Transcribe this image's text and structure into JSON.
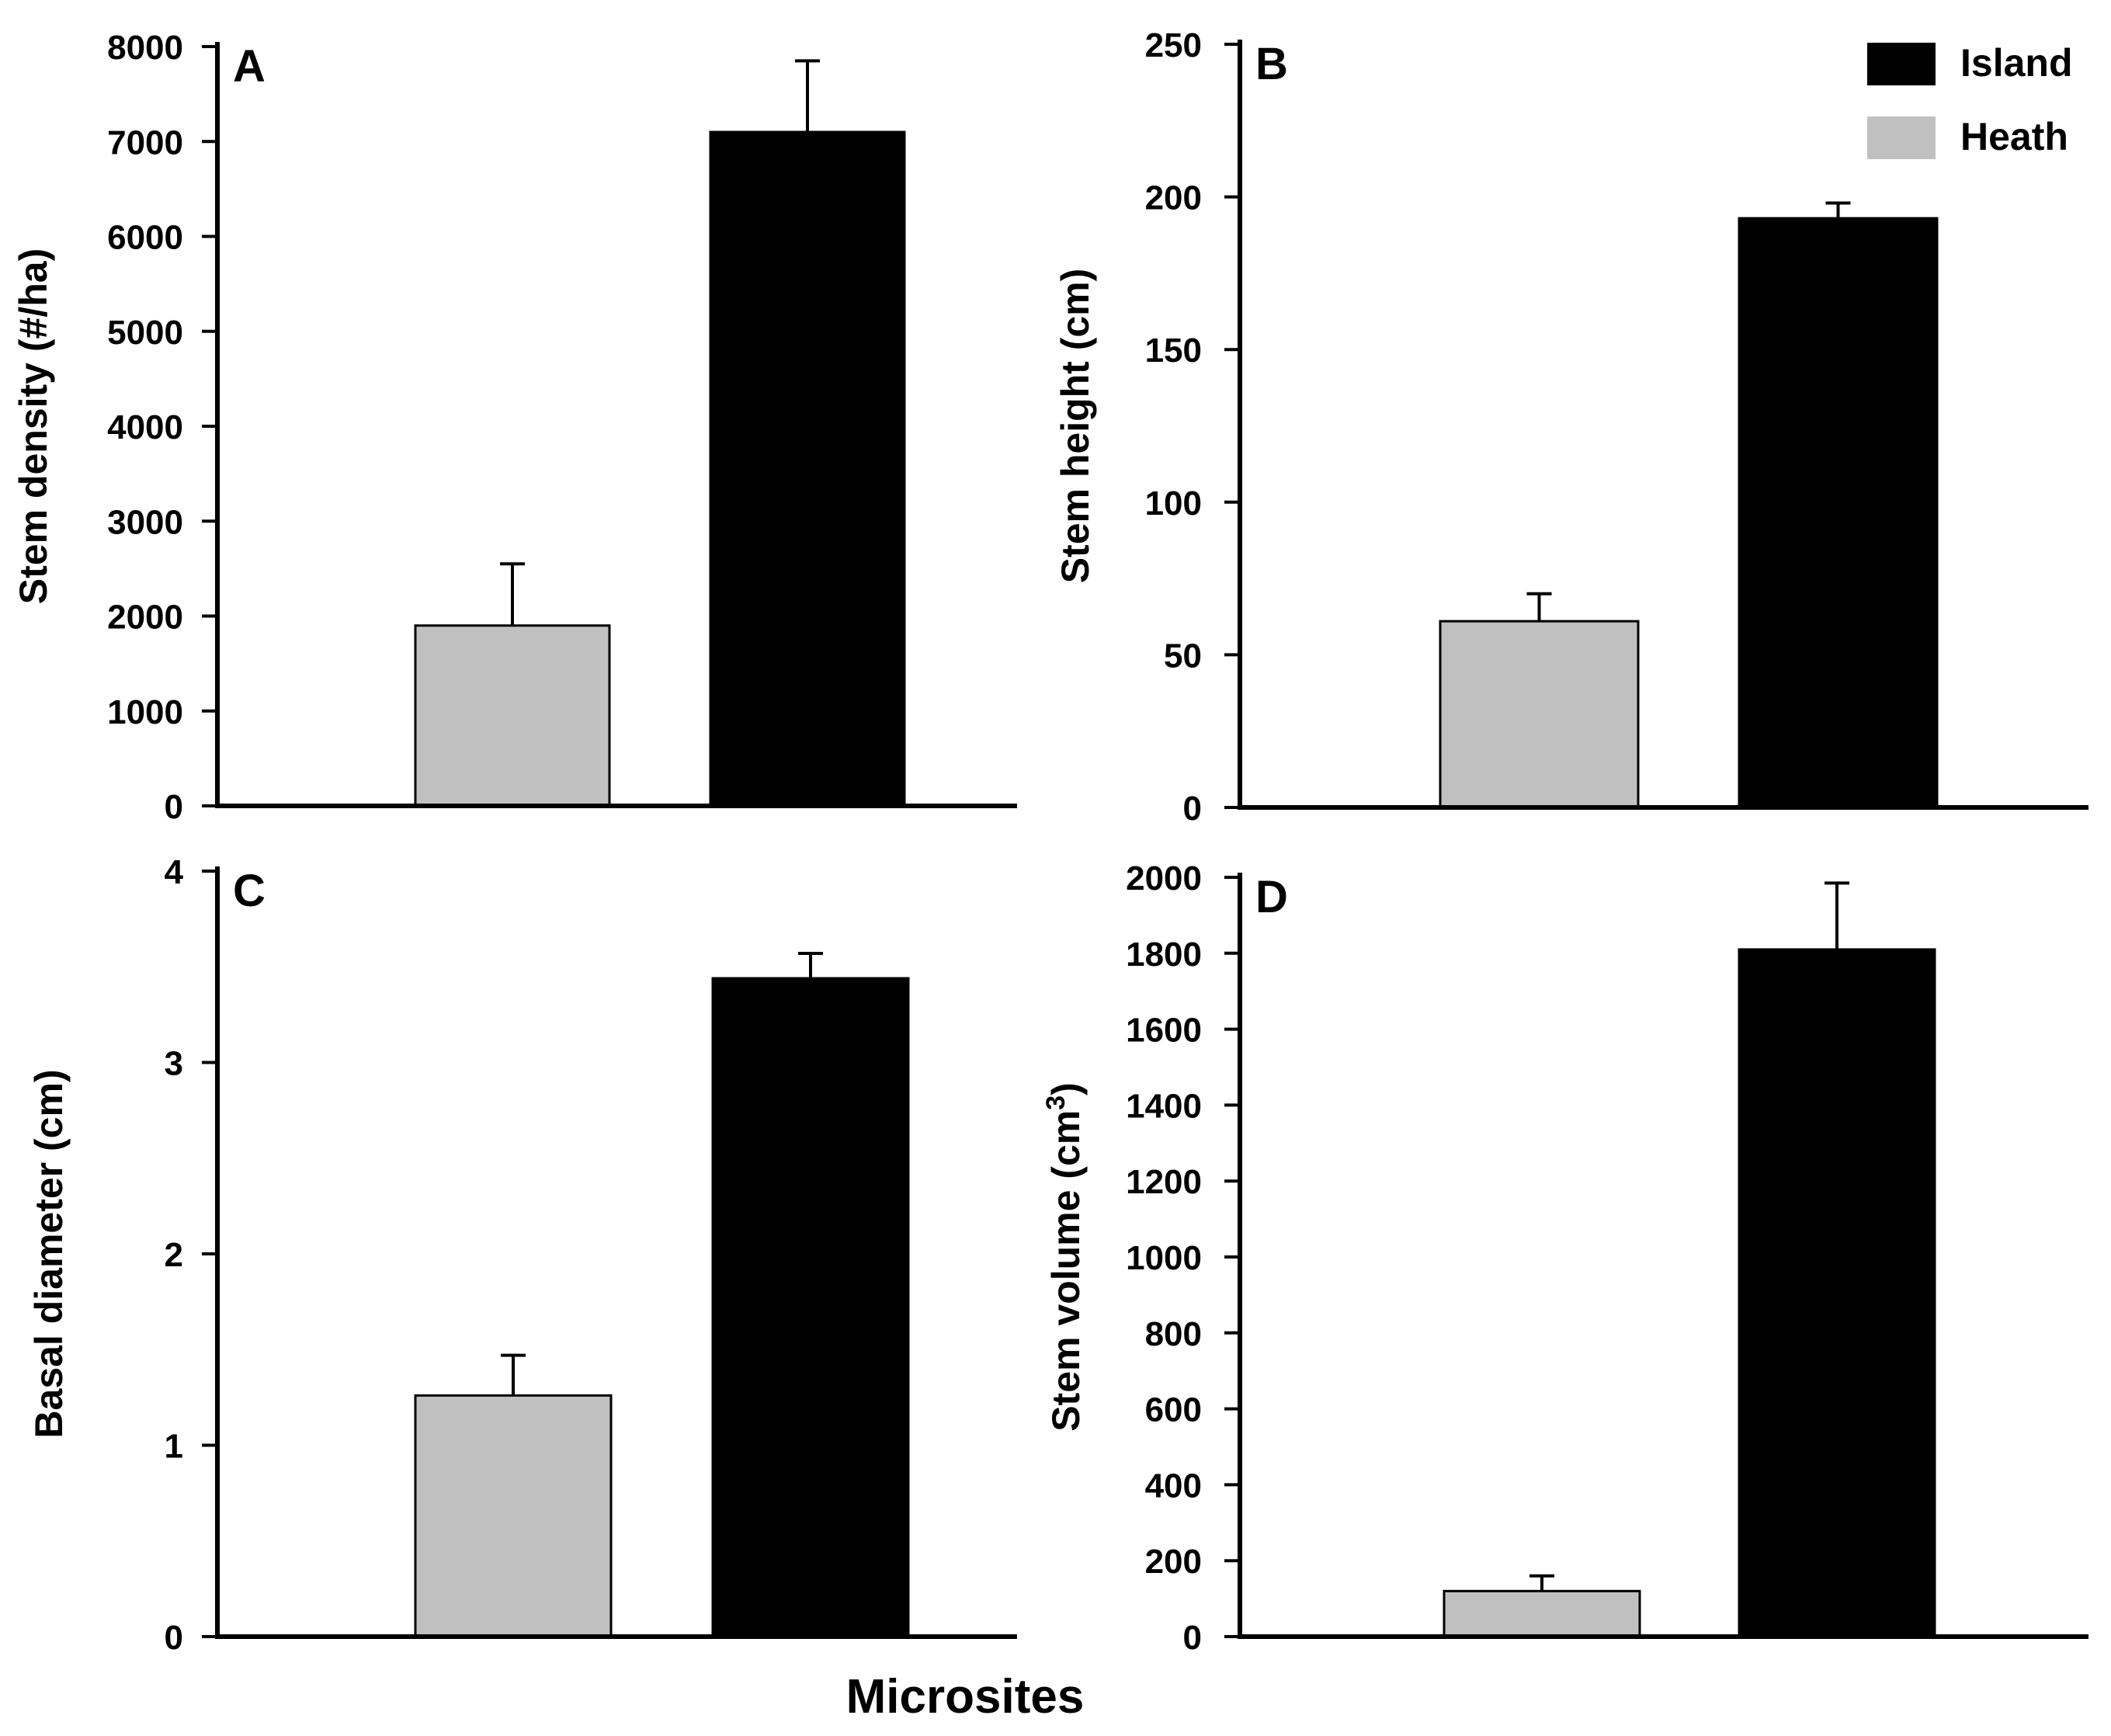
{
  "figure": {
    "xlabel": "Microsites",
    "legend": {
      "placement": "top-right",
      "items": [
        {
          "label": "Island",
          "color": "#000000"
        },
        {
          "label": "Heath",
          "color": "#c0c0c0"
        }
      ]
    }
  },
  "chart_data": [
    {
      "type": "bar",
      "panel": "A",
      "categories": [
        "Heath",
        "Island"
      ],
      "values": [
        1900,
        7100
      ],
      "errors": [
        650,
        750
      ],
      "colors": [
        "#c0c0c0",
        "#000000"
      ],
      "ylabel": "Stem density (#/ha)",
      "ylim": [
        0,
        8000
      ],
      "yticks": [
        0,
        1000,
        2000,
        3000,
        4000,
        5000,
        6000,
        7000,
        8000
      ],
      "yticklabels": [
        "0",
        "1000",
        "2000",
        "3000",
        "4000",
        "5000",
        "6000",
        "7000",
        "8000"
      ]
    },
    {
      "type": "bar",
      "panel": "B",
      "categories": [
        "Heath",
        "Island"
      ],
      "values": [
        61,
        193
      ],
      "errors": [
        9,
        5
      ],
      "colors": [
        "#c0c0c0",
        "#000000"
      ],
      "ylabel": "Stem height (cm)",
      "ylim": [
        0,
        250
      ],
      "yticks": [
        0,
        50,
        100,
        150,
        200,
        250
      ],
      "yticklabels": [
        "0",
        "50",
        "100",
        "150",
        "200",
        "250"
      ]
    },
    {
      "type": "bar",
      "panel": "C",
      "categories": [
        "Heath",
        "Island"
      ],
      "values": [
        1.26,
        3.44
      ],
      "errors": [
        0.21,
        0.13
      ],
      "colors": [
        "#c0c0c0",
        "#000000"
      ],
      "ylabel": "Basal diameter (cm)",
      "ylim": [
        0,
        4
      ],
      "yticks": [
        0,
        1,
        2,
        3,
        4
      ],
      "yticklabels": [
        "0",
        "1",
        "2",
        "3",
        "4"
      ]
    },
    {
      "type": "bar",
      "panel": "D",
      "categories": [
        "Heath",
        "Island"
      ],
      "values": [
        120,
        1810
      ],
      "errors": [
        40,
        175
      ],
      "colors": [
        "#c0c0c0",
        "#000000"
      ],
      "ylabel": "Stem volume (cm",
      "ylabel_superscript": "3",
      "ylabel_suffix": ")",
      "ylim": [
        0,
        2000
      ],
      "yticks": [
        0,
        200,
        400,
        600,
        800,
        1000,
        1200,
        1400,
        1600,
        1800,
        2000
      ],
      "yticklabels": [
        "0",
        "200",
        "400",
        "600",
        "800",
        "1000",
        "1200",
        "1400",
        "1600",
        "1800",
        "2000"
      ]
    }
  ]
}
